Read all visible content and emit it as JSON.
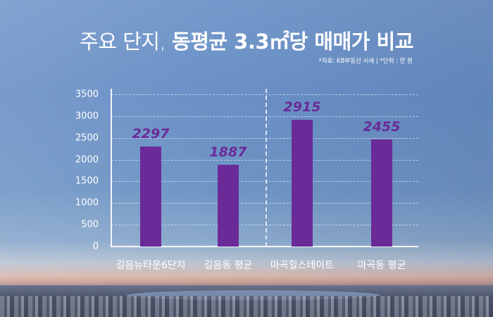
{
  "title": {
    "part1": "주요 단지, ",
    "part2": "동평균 3.3㎡당 매매가 비교"
  },
  "source_note": "*자료: KB부동산 시세 | *단위 : 만 원",
  "colors": {
    "bar": "#6a2a98",
    "value_label": "#6a2a98",
    "text": "#ffffff",
    "background_top": "#7499cb"
  },
  "chart_data": {
    "type": "bar",
    "title": "주요 단지, 동평균 3.3㎡당 매매가 비교",
    "subtitle": "*자료: KB부동산 시세 | *단위 : 만 원",
    "categories": [
      "길음뉴타운6단지",
      "길음동 평균",
      "마곡힐스테이트",
      "마곡동 평균"
    ],
    "values": [
      2297,
      1887,
      2915,
      2455
    ],
    "value_labels": [
      "2297",
      "1887",
      "2915",
      "2455"
    ],
    "xlabel": "",
    "ylabel": "",
    "unit": "만 원",
    "ylim": [
      0,
      3500
    ],
    "yticks": [
      0,
      500,
      1000,
      1500,
      2000,
      2500,
      3000,
      3500
    ],
    "ytick_labels": [
      "0",
      "500",
      "1000",
      "1500",
      "2000",
      "2500",
      "3000",
      "3500"
    ],
    "grid": true,
    "group_divider_after_index": 1,
    "legend": null
  }
}
